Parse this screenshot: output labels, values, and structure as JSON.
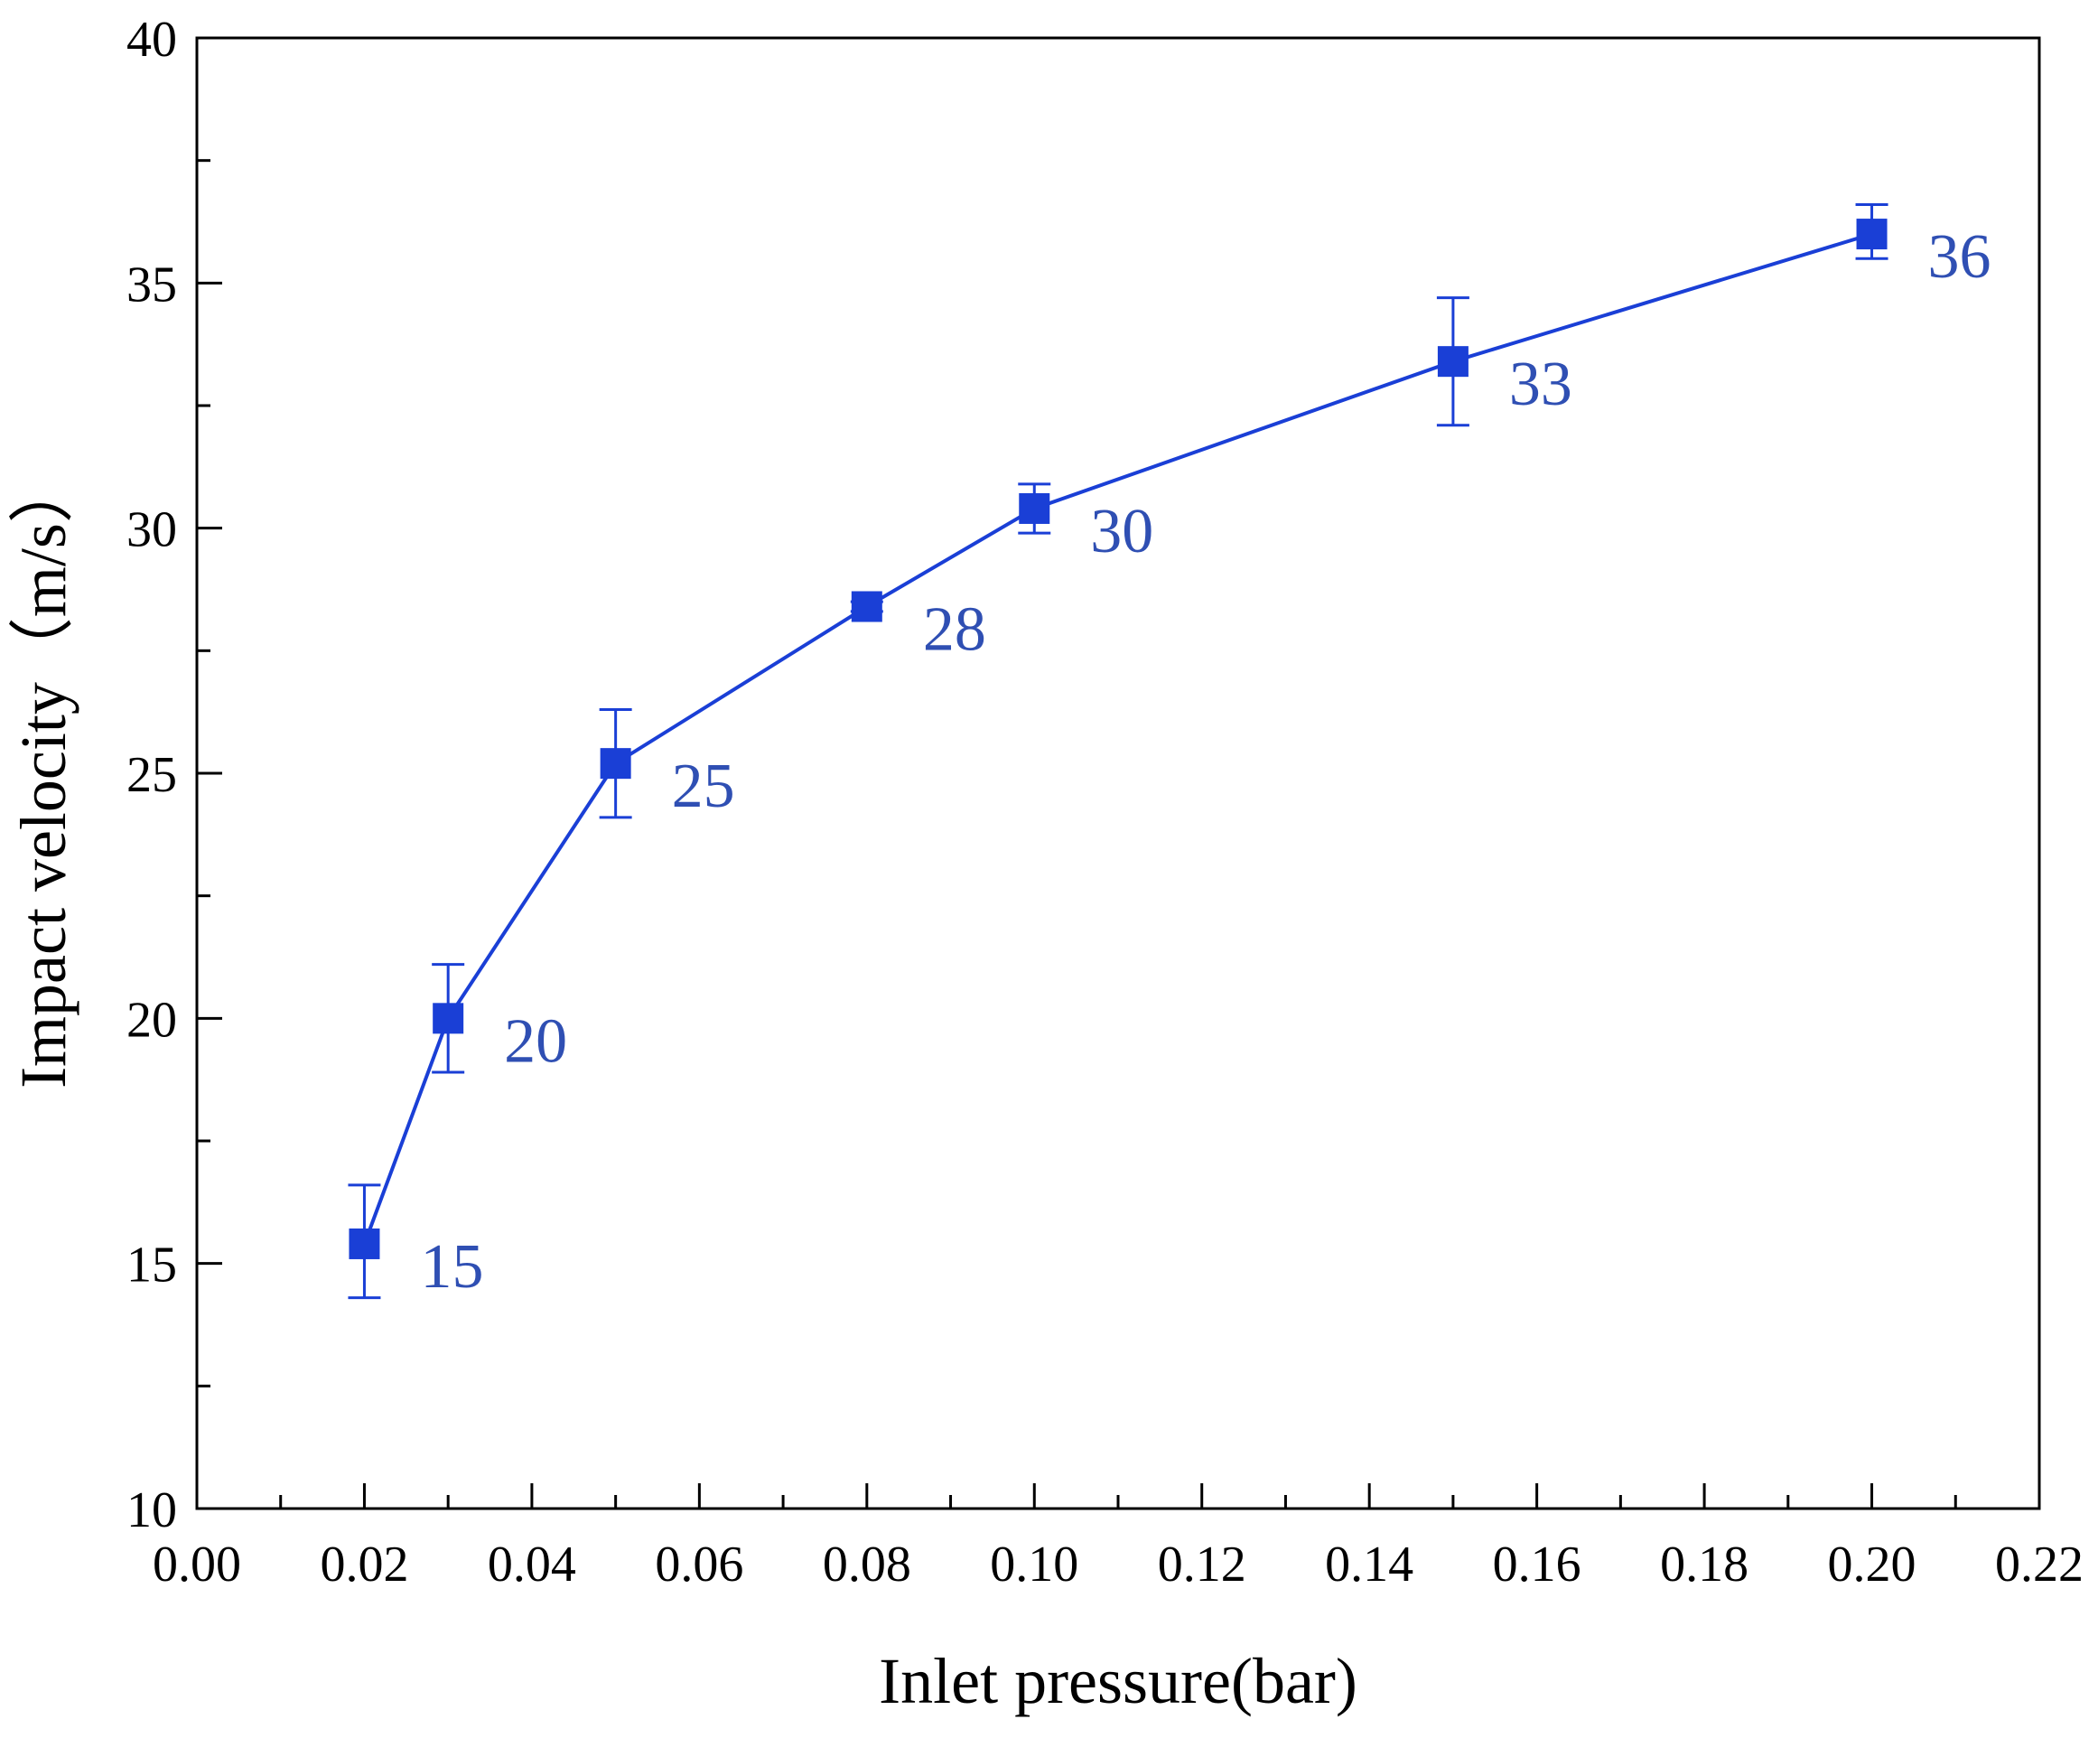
{
  "chart_data": {
    "type": "line",
    "xlabel": "Inlet pressure(bar)",
    "ylabel": "Impact velocity（m/s）",
    "xlim": [
      0.0,
      0.22
    ],
    "ylim": [
      10,
      40
    ],
    "x_ticks": [
      "0.00",
      "0.02",
      "0.04",
      "0.06",
      "0.08",
      "0.10",
      "0.12",
      "0.14",
      "0.16",
      "0.18",
      "0.20",
      "0.22"
    ],
    "y_ticks": [
      "10",
      "15",
      "20",
      "25",
      "30",
      "35",
      "40"
    ],
    "grid": false,
    "series": [
      {
        "color": "#1a3fd6",
        "points": [
          {
            "x": 0.02,
            "y": 15.4,
            "err_low": 14.3,
            "err_high": 16.6,
            "label": "15"
          },
          {
            "x": 0.03,
            "y": 20.0,
            "err_low": 18.9,
            "err_high": 21.1,
            "label": "20"
          },
          {
            "x": 0.05,
            "y": 25.2,
            "err_low": 24.1,
            "err_high": 26.3,
            "label": "25"
          },
          {
            "x": 0.08,
            "y": 28.4,
            "err_low": 28.3,
            "err_high": 28.5,
            "label": "28"
          },
          {
            "x": 0.1,
            "y": 30.4,
            "err_low": 29.9,
            "err_high": 30.9,
            "label": "30"
          },
          {
            "x": 0.15,
            "y": 33.4,
            "err_low": 32.1,
            "err_high": 34.7,
            "label": "33"
          },
          {
            "x": 0.2,
            "y": 36.0,
            "err_low": 35.5,
            "err_high": 36.6,
            "label": "36"
          }
        ]
      }
    ]
  },
  "colors": {
    "series": "#1a3fd6",
    "point_label": "#2f4fb3",
    "axis": "#000000"
  }
}
